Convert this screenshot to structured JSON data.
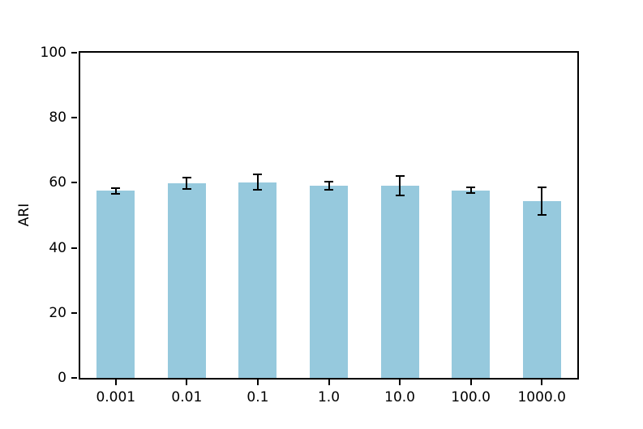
{
  "chart_data": {
    "type": "bar",
    "title": "",
    "xlabel": "",
    "ylabel": "ARI",
    "categories": [
      "0.001",
      "0.01",
      "0.1",
      "1.0",
      "10.0",
      "100.0",
      "1000.0"
    ],
    "values": [
      57.5,
      59.8,
      60.2,
      59.1,
      59.2,
      57.7,
      54.3
    ],
    "errors": [
      0.8,
      1.8,
      2.4,
      1.2,
      3.0,
      0.8,
      4.2
    ],
    "ylim": [
      0,
      100
    ],
    "yticks": [
      0,
      20,
      40,
      60,
      80,
      100
    ],
    "bar_color": "#96c9dd",
    "error_bar_color": "#000000",
    "axis_color": "#000000",
    "grid": false,
    "legend_position": "none"
  }
}
